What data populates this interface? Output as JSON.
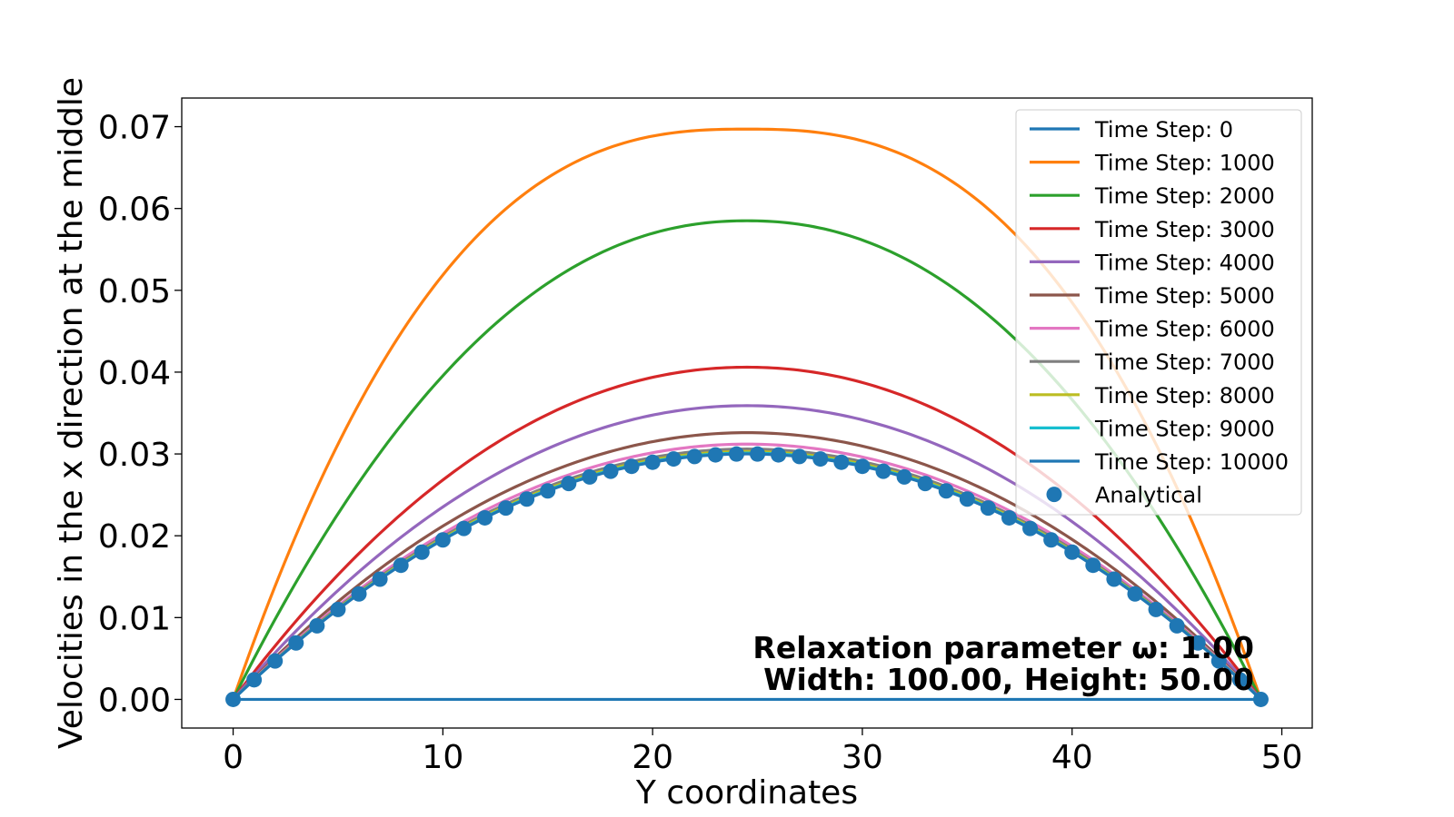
{
  "chart_data": {
    "type": "line",
    "title": "",
    "xlabel": "Y coordinates",
    "ylabel": "Velocities in the x direction at the middle",
    "xlim": [
      -2.45,
      51.45
    ],
    "ylim": [
      -0.0035,
      0.0735
    ],
    "xticks": [
      0,
      10,
      20,
      30,
      40,
      50
    ],
    "xtick_labels": [
      "0",
      "10",
      "20",
      "30",
      "40",
      "50"
    ],
    "yticks": [
      0.0,
      0.01,
      0.02,
      0.03,
      0.04,
      0.05,
      0.06,
      0.07
    ],
    "ytick_labels": [
      "0.00",
      "0.01",
      "0.02",
      "0.03",
      "0.04",
      "0.05",
      "0.06",
      "0.07"
    ],
    "grid": false,
    "legend_position": "top-right",
    "x_range": [
      0,
      49
    ],
    "series": [
      {
        "name": "Time Step: 0",
        "color": "#1f77b4",
        "profile": "zero",
        "peak": 0.0
      },
      {
        "name": "Time Step: 1000",
        "color": "#ff7f0e",
        "profile": "flat",
        "peak": 0.0697
      },
      {
        "name": "Time Step: 2000",
        "color": "#2ca02c",
        "profile": "rounded",
        "peak": 0.0585
      },
      {
        "name": "Time Step: 3000",
        "color": "#d62728",
        "profile": "rounded2",
        "peak": 0.0406
      },
      {
        "name": "Time Step: 4000",
        "color": "#9467bd",
        "profile": "rounded3",
        "peak": 0.0359
      },
      {
        "name": "Time Step: 5000",
        "color": "#8c564b",
        "profile": "parabola",
        "peak": 0.0326
      },
      {
        "name": "Time Step: 6000",
        "color": "#e377c2",
        "profile": "parabola",
        "peak": 0.0312
      },
      {
        "name": "Time Step: 7000",
        "color": "#7f7f7f",
        "profile": "parabola",
        "peak": 0.0306
      },
      {
        "name": "Time Step: 8000",
        "color": "#bcbd22",
        "profile": "parabola",
        "peak": 0.0303
      },
      {
        "name": "Time Step: 9000",
        "color": "#17becf",
        "profile": "parabola",
        "peak": 0.0301
      },
      {
        "name": "Time Step: 10000",
        "color": "#1f77b4",
        "profile": "parabola",
        "peak": 0.03
      }
    ],
    "analytical": {
      "name": "Analytical",
      "color": "#1f77b4",
      "x_start": 0,
      "x_end": 49,
      "x_step": 1,
      "peak": 0.03
    },
    "annotations": [
      "Relaxation parameter ω: 1.00",
      "Width: 100.00, Height: 50.00"
    ]
  }
}
